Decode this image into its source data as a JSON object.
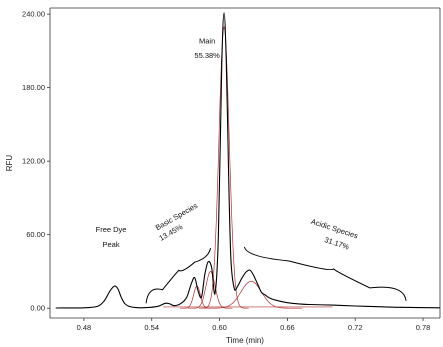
{
  "chart_data": {
    "type": "line",
    "xlabel": "Time (min)",
    "ylabel": "RFU",
    "xlim": [
      0.45,
      0.795
    ],
    "ylim": [
      -8,
      245
    ],
    "x_ticks": [
      "0.48",
      "0.54",
      "0.60",
      "0.66",
      "0.72",
      "0.78"
    ],
    "x_tick_values": [
      0.48,
      0.54,
      0.6,
      0.66,
      0.72,
      0.78
    ],
    "y_ticks": [
      "0.00",
      "60.00",
      "120.00",
      "180.00",
      "240.00"
    ],
    "y_tick_values": [
      0,
      60,
      120,
      180,
      240
    ],
    "grid": false,
    "colors": {
      "trace": "#000000",
      "fit": "#b03030",
      "axis": "#333333"
    },
    "series": [
      {
        "role": "electropherogram",
        "x": [
          0.455,
          0.48,
          0.492,
          0.498,
          0.503,
          0.507,
          0.51,
          0.513,
          0.516,
          0.52,
          0.526,
          0.535,
          0.545,
          0.552,
          0.556,
          0.56,
          0.566,
          0.571,
          0.575,
          0.578,
          0.581,
          0.584,
          0.587,
          0.59,
          0.593,
          0.596,
          0.599,
          0.602,
          0.604,
          0.606,
          0.608,
          0.61,
          0.613,
          0.616,
          0.62,
          0.624,
          0.627,
          0.63,
          0.634,
          0.637,
          0.64,
          0.645,
          0.652,
          0.66,
          0.67,
          0.68,
          0.7,
          0.72,
          0.74,
          0.76,
          0.795
        ],
        "y": [
          0.2,
          0.3,
          1.5,
          6,
          14,
          18,
          16,
          9,
          4,
          1.5,
          0.5,
          0.5,
          1.5,
          4,
          3.5,
          2,
          4,
          9,
          20,
          25,
          14,
          9,
          28,
          38,
          33,
          12,
          60,
          200,
          241,
          200,
          110,
          40,
          16,
          18,
          25,
          30,
          31,
          27,
          19,
          13,
          11,
          8,
          6,
          4.5,
          3.5,
          3,
          2.5,
          1.8,
          1.2,
          0.7,
          0.3
        ]
      }
    ],
    "peaks": [
      {
        "name": "Free Dye Peak",
        "line1": "Free Dye",
        "line2": "Peak",
        "x": 0.508,
        "y": 18
      },
      {
        "name": "Main",
        "line1": "Main",
        "line2": "55.38%",
        "x": 0.604,
        "y": 241
      },
      {
        "name": "Basic Species",
        "line1": "Basic Species",
        "line2": "13.45%",
        "x_range": [
          0.535,
          0.592
        ]
      },
      {
        "name": "Acidic Species",
        "line1": "Acidic Species",
        "line2": "31.17%",
        "x_range": [
          0.622,
          0.765
        ]
      }
    ]
  }
}
